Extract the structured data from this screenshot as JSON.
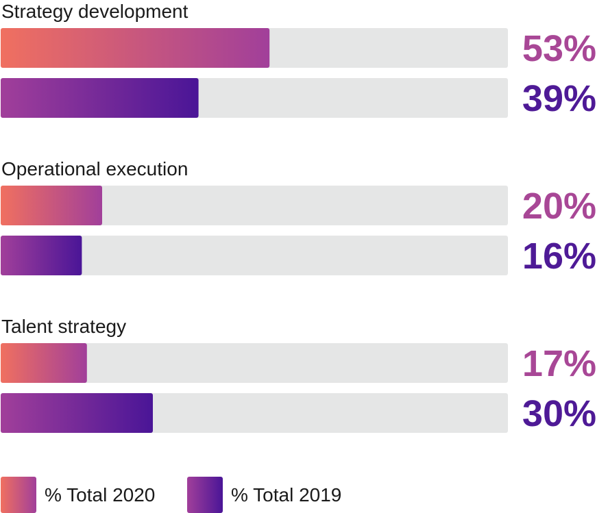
{
  "chart_data": {
    "type": "bar",
    "orientation": "horizontal",
    "categories": [
      "Strategy development",
      "Operational execution",
      "Talent strategy"
    ],
    "series": [
      {
        "name": "% Total 2020",
        "values": [
          53,
          20,
          17
        ],
        "labels": [
          "53%",
          "20%",
          "17%"
        ],
        "label_color": "#a84796",
        "gradient": [
          "#f07060",
          "#a13f9a"
        ]
      },
      {
        "name": "% Total 2019",
        "values": [
          39,
          16,
          30
        ],
        "labels": [
          "39%",
          "16%",
          "30%"
        ],
        "label_color": "#4e1a96",
        "gradient": [
          "#a13f9a",
          "#4a1597"
        ]
      }
    ],
    "xlim": [
      0,
      100
    ],
    "track_color": "#e5e6e6",
    "grid": false,
    "legend": "bottom-left"
  }
}
